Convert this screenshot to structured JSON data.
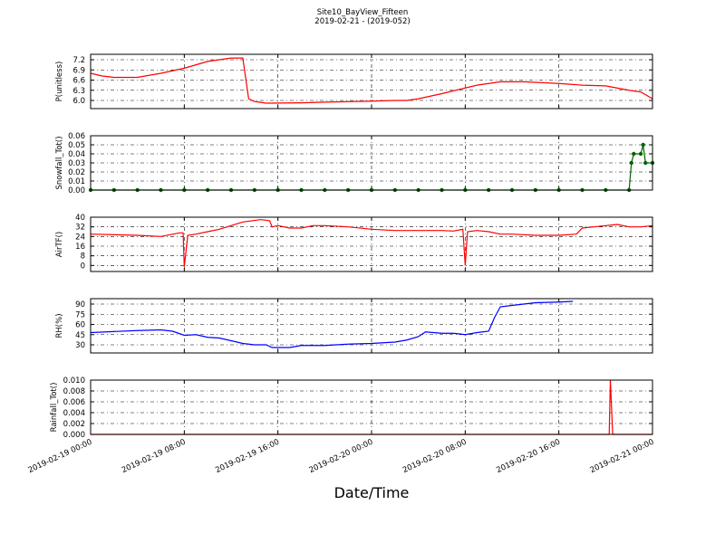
{
  "title": "Site10_BayView_Fifteen",
  "subtitle": "2019-02-21 - (2019-052)",
  "xlabel": "Date/Time",
  "xlim": [
    "2019-02-19 00:00",
    "2019-02-21 00:00"
  ],
  "xticks": [
    "2019-02-19 00:00",
    "2019-02-19 08:00",
    "2019-02-19 16:00",
    "2019-02-20 00:00",
    "2019-02-20 08:00",
    "2019-02-20 16:00",
    "2019-02-21 00:00"
  ],
  "chart_data": [
    {
      "type": "line",
      "ylabel": "P(unitless)",
      "ylim": [
        5.76,
        7.36
      ],
      "yticks": [
        {
          "value": 6,
          "label": "6.0"
        },
        6.3,
        6.6,
        6.9,
        7.2
      ],
      "grid": true,
      "x": [
        "2019-02-19 00:00",
        "2019-02-19 01:00",
        "2019-02-19 02:00",
        "2019-02-19 04:00",
        "2019-02-19 06:00",
        "2019-02-19 08:00",
        "2019-02-19 10:00",
        "2019-02-19 11:00",
        "2019-02-19 12:00",
        "2019-02-19 13:00",
        "2019-02-19 13:30",
        "2019-02-19 14:00",
        "2019-02-19 15:00",
        "2019-02-19 18:00",
        "2019-02-19 20:00",
        "2019-02-20 00:00",
        "2019-02-20 02:00",
        "2019-02-20 03:00",
        "2019-02-20 04:00",
        "2019-02-20 06:00",
        "2019-02-20 09:00",
        "2019-02-20 11:00",
        "2019-02-20 13:00",
        "2019-02-20 16:00",
        "2019-02-20 18:00",
        "2019-02-20 20:00",
        "2019-02-20 22:00",
        "2019-02-20 23:00",
        "2019-02-21 00:00"
      ],
      "series": [
        {
          "color": "#ff0000",
          "values": [
            6.8,
            6.72,
            6.68,
            6.68,
            6.8,
            6.95,
            7.15,
            7.2,
            7.25,
            7.25,
            6.05,
            5.97,
            5.92,
            5.93,
            5.95,
            5.98,
            6.0,
            6.0,
            6.05,
            6.2,
            6.45,
            6.55,
            6.55,
            6.5,
            6.45,
            6.43,
            6.3,
            6.25,
            6.05
          ]
        }
      ]
    },
    {
      "type": "line",
      "ylabel": "Snowfall_Tot()",
      "ylim": [
        0,
        0.06
      ],
      "yticks": [
        {
          "value": 0,
          "label": "0.00"
        },
        0.01,
        0.02,
        0.03,
        0.04,
        0.05,
        0.06
      ],
      "grid": true,
      "markers": true,
      "x": [
        "2019-02-19 00:00",
        "2019-02-19 02:00",
        "2019-02-19 04:00",
        "2019-02-19 06:00",
        "2019-02-19 08:00",
        "2019-02-19 10:00",
        "2019-02-19 12:00",
        "2019-02-19 14:00",
        "2019-02-19 16:00",
        "2019-02-19 18:00",
        "2019-02-19 20:00",
        "2019-02-19 22:00",
        "2019-02-20 00:00",
        "2019-02-20 02:00",
        "2019-02-20 04:00",
        "2019-02-20 06:00",
        "2019-02-20 08:00",
        "2019-02-20 10:00",
        "2019-02-20 12:00",
        "2019-02-20 14:00",
        "2019-02-20 16:00",
        "2019-02-20 18:00",
        "2019-02-20 20:00",
        "2019-02-20 22:00",
        "2019-02-20 22:12",
        "2019-02-20 22:24",
        "2019-02-20 23:00",
        "2019-02-20 23:12",
        "2019-02-20 23:24",
        "2019-02-21 00:00"
      ],
      "series": [
        {
          "color": "#006400",
          "values": [
            0,
            0,
            0,
            0,
            0,
            0,
            0,
            0,
            0,
            0,
            0,
            0,
            0,
            0,
            0,
            0,
            0,
            0,
            0,
            0,
            0,
            0,
            0,
            0,
            0.03,
            0.04,
            0.04,
            0.05,
            0.03,
            0.03
          ]
        }
      ]
    },
    {
      "type": "line",
      "ylabel": "AirTF()",
      "ylim": [
        -5,
        40
      ],
      "yticks": [
        0,
        8,
        16,
        24,
        32,
        40
      ],
      "grid": true,
      "x": [
        "2019-02-19 00:00",
        "2019-02-19 04:00",
        "2019-02-19 06:00",
        "2019-02-19 07:36",
        "2019-02-19 07:54",
        "2019-02-19 08:00",
        "2019-02-19 08:18",
        "2019-02-19 09:00",
        "2019-02-19 10:00",
        "2019-02-19 11:00",
        "2019-02-19 12:00",
        "2019-02-19 13:00",
        "2019-02-19 14:30",
        "2019-02-19 15:00",
        "2019-02-19 15:18",
        "2019-02-19 15:30",
        "2019-02-19 16:00",
        "2019-02-19 17:00",
        "2019-02-19 18:00",
        "2019-02-19 19:00",
        "2019-02-19 20:00",
        "2019-02-19 22:00",
        "2019-02-20 00:00",
        "2019-02-20 02:00",
        "2019-02-20 06:00",
        "2019-02-20 07:00",
        "2019-02-20 07:48",
        "2019-02-20 08:00",
        "2019-02-20 08:12",
        "2019-02-20 09:00",
        "2019-02-20 10:00",
        "2019-02-20 11:00",
        "2019-02-20 12:00",
        "2019-02-20 14:00",
        "2019-02-20 16:00",
        "2019-02-20 17:30",
        "2019-02-20 18:00",
        "2019-02-20 19:00",
        "2019-02-20 21:00",
        "2019-02-20 22:00",
        "2019-02-20 23:00",
        "2019-02-21 00:00"
      ],
      "series": [
        {
          "color": "#ff0000",
          "values": [
            26,
            25,
            24,
            27,
            27,
            -1,
            25,
            26,
            28,
            30,
            33,
            36,
            38,
            37.5,
            37,
            32,
            33,
            31,
            31,
            33,
            33,
            32,
            30,
            29,
            29,
            28.5,
            30,
            0,
            28,
            29,
            28,
            26,
            26,
            25,
            25,
            26,
            31,
            32,
            34,
            32,
            32,
            33
          ]
        }
      ]
    },
    {
      "type": "line",
      "ylabel": "RH(%)",
      "ylim": [
        18,
        98
      ],
      "yticks": [
        30,
        45,
        60,
        75,
        90
      ],
      "grid": true,
      "x": [
        "2019-02-19 00:00",
        "2019-02-19 04:00",
        "2019-02-19 06:00",
        "2019-02-19 07:00",
        "2019-02-19 08:00",
        "2019-02-19 09:00",
        "2019-02-19 10:00",
        "2019-02-19 11:00",
        "2019-02-19 12:00",
        "2019-02-19 13:00",
        "2019-02-19 14:00",
        "2019-02-19 15:00",
        "2019-02-19 15:30",
        "2019-02-19 16:00",
        "2019-02-19 17:00",
        "2019-02-19 18:00",
        "2019-02-19 20:00",
        "2019-02-19 22:00",
        "2019-02-20 00:00",
        "2019-02-20 02:00",
        "2019-02-20 03:00",
        "2019-02-20 04:00",
        "2019-02-20 04:36",
        "2019-02-20 06:00",
        "2019-02-20 07:00",
        "2019-02-20 08:00",
        "2019-02-20 09:00",
        "2019-02-20 10:00",
        "2019-02-20 10:30",
        "2019-02-20 11:00",
        "2019-02-20 12:00",
        "2019-02-20 13:00",
        "2019-02-20 14:00",
        "2019-02-20 16:00",
        "2019-02-20 17:12"
      ],
      "series": [
        {
          "color": "#0000ff",
          "values": [
            48,
            51,
            52,
            50,
            44,
            45,
            41,
            40,
            36,
            32,
            30,
            30,
            26,
            26,
            26,
            29,
            29,
            31,
            32,
            34,
            37,
            42,
            49,
            47,
            47,
            45,
            48,
            50,
            70,
            86,
            88,
            90,
            92,
            93,
            94
          ]
        }
      ]
    },
    {
      "type": "line",
      "ylabel": "Rainfall_Tot()",
      "ylim": [
        0,
        0.01
      ],
      "yticks": [
        {
          "value": 0,
          "label": "0.000"
        },
        0.002,
        0.004,
        0.006,
        0.008,
        {
          "value": 0.01,
          "label": "0.010"
        }
      ],
      "grid": true,
      "x": [
        "2019-02-19 00:00",
        "2019-02-20 20:18",
        "2019-02-20 20:24",
        "2019-02-20 20:36",
        "2019-02-21 00:00"
      ],
      "series": [
        {
          "color": "#ff0000",
          "values": [
            0,
            0,
            0.01,
            0,
            0
          ]
        }
      ]
    }
  ]
}
